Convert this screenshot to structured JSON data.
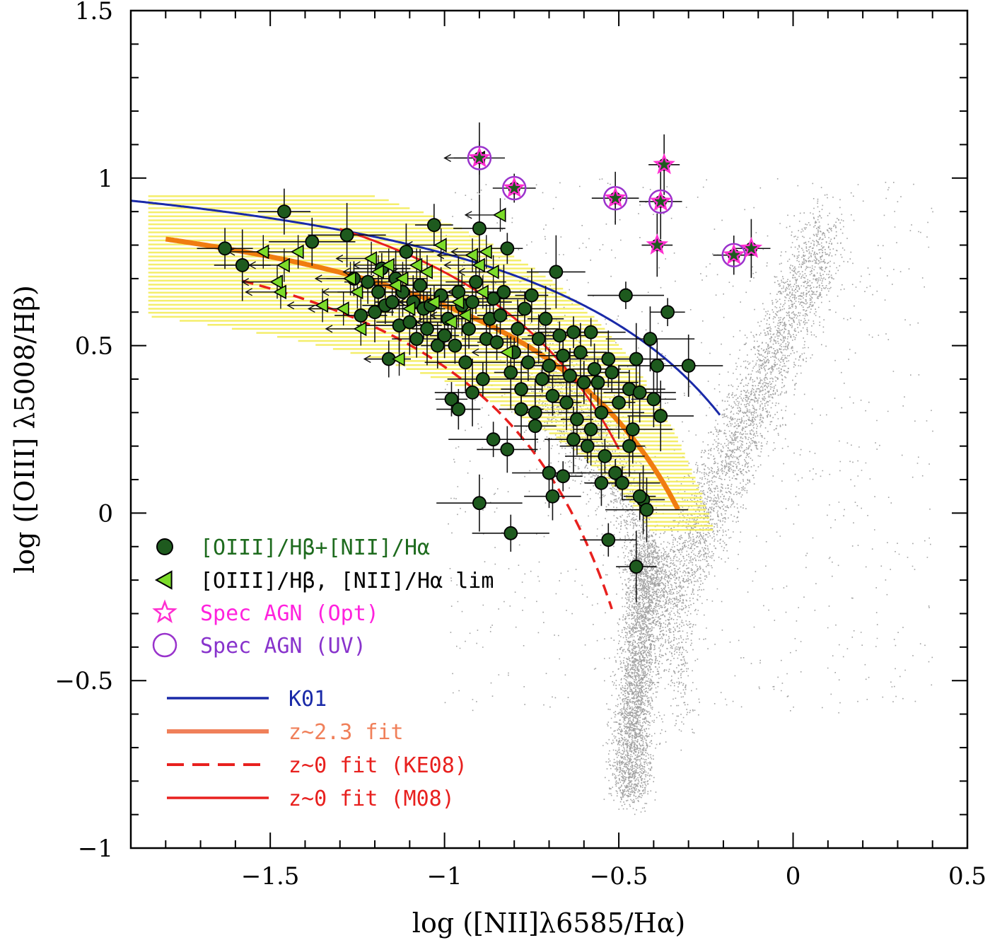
{
  "chart_data": {
    "type": "scatter",
    "xlabel": "log ([NII]λ6585/Hα)",
    "ylabel": "log ([OIII] λ5008/Hβ)",
    "xlim": [
      -1.9,
      0.5
    ],
    "ylim": [
      -1.0,
      1.5
    ],
    "x_ticks": [
      "−1.5",
      "−1",
      "−0.5",
      "0",
      "0.5"
    ],
    "y_ticks": [
      "−1",
      "−0.5",
      "0",
      "0.5",
      "1",
      "1.5"
    ],
    "grid": false,
    "legend_position": "lower-left",
    "colors": {
      "detections": "#1e5a1e",
      "limits": "#7cdc2a",
      "agn_opt": "#ff2ed0",
      "agn_uv": "#9933cc",
      "k01": "#1a2aa8",
      "z23_fit": "#f07d10",
      "z0_fit": "#e8201e",
      "sdss_background": "#8a8a8a",
      "fit_band": "#f3ec52"
    },
    "legend": [
      {
        "marker": "circle",
        "label": "[OIII]/Hβ+[NII]/Hα",
        "color": "#1e6b1e"
      },
      {
        "marker": "triangle-left",
        "label": "[OIII]/Hβ, [NII]/Hα lim",
        "color": "#000000"
      },
      {
        "marker": "star",
        "label": "Spec AGN (Opt)",
        "color": "#ff22dd"
      },
      {
        "marker": "open-circle",
        "label": "Spec AGN (UV)",
        "color": "#8833cc"
      },
      {
        "marker": "line-solid",
        "label": "K01",
        "color": "#1a2aa8"
      },
      {
        "marker": "line-thick",
        "label": "z~2.3 fit",
        "color": "#f0805a"
      },
      {
        "marker": "line-dashed",
        "label": "z~0 fit (KE08)",
        "color": "#e8201e"
      },
      {
        "marker": "line-solid",
        "label": "z~0 fit (M08)",
        "color": "#e8201e"
      }
    ],
    "series": [
      {
        "name": "[OIII]/Hβ+[NII]/Hα",
        "marker": "circle",
        "points": [
          [
            -1.63,
            0.79
          ],
          [
            -1.58,
            0.74
          ],
          [
            -1.46,
            0.9
          ],
          [
            -1.38,
            0.81
          ],
          [
            -1.28,
            0.83
          ],
          [
            -1.26,
            0.7
          ],
          [
            -1.24,
            0.59
          ],
          [
            -1.22,
            0.69
          ],
          [
            -1.2,
            0.6
          ],
          [
            -1.19,
            0.66
          ],
          [
            -1.18,
            0.73
          ],
          [
            -1.17,
            0.62
          ],
          [
            -1.16,
            0.46
          ],
          [
            -1.15,
            0.63
          ],
          [
            -1.14,
            0.7
          ],
          [
            -1.13,
            0.56
          ],
          [
            -1.12,
            0.66
          ],
          [
            -1.11,
            0.78
          ],
          [
            -1.1,
            0.57
          ],
          [
            -1.09,
            0.63
          ],
          [
            -1.08,
            0.52
          ],
          [
            -1.07,
            0.68
          ],
          [
            -1.06,
            0.61
          ],
          [
            -1.05,
            0.55
          ],
          [
            -1.04,
            0.62
          ],
          [
            -1.03,
            0.86
          ],
          [
            -1.02,
            0.5
          ],
          [
            -1.01,
            0.65
          ],
          [
            -1.0,
            0.53
          ],
          [
            -0.99,
            0.58
          ],
          [
            -0.98,
            0.34
          ],
          [
            -0.97,
            0.5
          ],
          [
            -0.96,
            0.66
          ],
          [
            -0.95,
            0.62
          ],
          [
            -0.94,
            0.45
          ],
          [
            -0.93,
            0.55
          ],
          [
            -0.92,
            0.63
          ],
          [
            -0.91,
            0.69
          ],
          [
            -0.9,
            0.85
          ],
          [
            -0.89,
            0.4
          ],
          [
            -0.88,
            0.52
          ],
          [
            -0.87,
            0.58
          ],
          [
            -0.86,
            0.64
          ],
          [
            -0.85,
            0.51
          ],
          [
            -0.84,
            0.59
          ],
          [
            -0.83,
            0.66
          ],
          [
            -0.82,
            0.79
          ],
          [
            -0.81,
            0.42
          ],
          [
            -0.8,
            0.48
          ],
          [
            -0.79,
            0.55
          ],
          [
            -0.78,
            0.37
          ],
          [
            -0.77,
            0.61
          ],
          [
            -0.76,
            0.45
          ],
          [
            -0.75,
            0.65
          ],
          [
            -0.74,
            0.3
          ],
          [
            -0.73,
            0.52
          ],
          [
            -0.72,
            0.4
          ],
          [
            -0.71,
            0.58
          ],
          [
            -0.7,
            0.44
          ],
          [
            -0.69,
            0.35
          ],
          [
            -0.68,
            0.72
          ],
          [
            -0.67,
            0.53
          ],
          [
            -0.66,
            0.47
          ],
          [
            -0.65,
            0.33
          ],
          [
            -0.64,
            0.41
          ],
          [
            -0.63,
            0.54
          ],
          [
            -0.62,
            0.28
          ],
          [
            -0.61,
            0.48
          ],
          [
            -0.6,
            0.39
          ],
          [
            -0.59,
            0.2
          ],
          [
            -0.58,
            0.54
          ],
          [
            -0.57,
            0.43
          ],
          [
            -0.56,
            0.39
          ],
          [
            -0.55,
            0.3
          ],
          [
            -0.54,
            0.17
          ],
          [
            -0.53,
            0.46
          ],
          [
            -0.52,
            0.42
          ],
          [
            -0.51,
            0.12
          ],
          [
            -0.5,
            0.33
          ],
          [
            -0.49,
            0.09
          ],
          [
            -0.48,
            0.65
          ],
          [
            -0.47,
            0.37
          ],
          [
            -0.46,
            0.25
          ],
          [
            -0.45,
            0.46
          ],
          [
            -0.44,
            0.36
          ],
          [
            -0.43,
            0.04
          ],
          [
            -0.42,
            0.01
          ],
          [
            -0.41,
            0.52
          ],
          [
            -0.4,
            0.34
          ],
          [
            -0.39,
            0.44
          ],
          [
            -0.38,
            0.29
          ],
          [
            -0.36,
            0.6
          ],
          [
            -0.3,
            0.44
          ],
          [
            -0.9,
            0.03
          ],
          [
            -0.86,
            0.22
          ],
          [
            -0.82,
            0.19
          ],
          [
            -0.78,
            0.31
          ],
          [
            -0.74,
            0.26
          ],
          [
            -0.7,
            0.12
          ],
          [
            -0.69,
            0.05
          ],
          [
            -0.66,
            0.11
          ],
          [
            -0.63,
            0.22
          ],
          [
            -0.58,
            0.25
          ],
          [
            -0.81,
            -0.06
          ],
          [
            -0.53,
            -0.08
          ],
          [
            -0.45,
            -0.16
          ],
          [
            -0.96,
            0.31
          ],
          [
            -0.92,
            0.36
          ],
          [
            -0.55,
            0.09
          ],
          [
            -0.47,
            0.2
          ],
          [
            -0.44,
            0.05
          ]
        ]
      },
      {
        "name": "[OIII]/Hβ, [NII]/Hα lim",
        "marker": "triangle-left",
        "points": [
          [
            -1.52,
            0.78
          ],
          [
            -1.48,
            0.69
          ],
          [
            -1.47,
            0.66
          ],
          [
            -1.46,
            0.74
          ],
          [
            -1.42,
            0.78
          ],
          [
            -1.35,
            0.62
          ],
          [
            -1.29,
            0.61
          ],
          [
            -1.27,
            0.7
          ],
          [
            -1.25,
            0.66
          ],
          [
            -1.24,
            0.55
          ],
          [
            -1.21,
            0.76
          ],
          [
            -1.19,
            0.72
          ],
          [
            -1.16,
            0.74
          ],
          [
            -1.14,
            0.68
          ],
          [
            -1.12,
            0.7
          ],
          [
            -1.1,
            0.61
          ],
          [
            -1.08,
            0.74
          ],
          [
            -1.05,
            0.72
          ],
          [
            -1.03,
            0.63
          ],
          [
            -1.01,
            0.8
          ],
          [
            -0.98,
            0.57
          ],
          [
            -0.96,
            0.63
          ],
          [
            -0.94,
            0.59
          ],
          [
            -0.92,
            0.77
          ],
          [
            -0.9,
            0.74
          ],
          [
            -0.89,
            0.66
          ],
          [
            -0.88,
            0.78
          ],
          [
            -0.86,
            0.72
          ],
          [
            -0.84,
            0.89
          ],
          [
            -0.82,
            0.48
          ],
          [
            -1.13,
            0.46
          ],
          [
            -0.9,
            1.06
          ]
        ]
      },
      {
        "name": "Spec AGN (Opt)",
        "marker": "star",
        "points": [
          [
            -0.9,
            1.06
          ],
          [
            -0.8,
            0.97
          ],
          [
            -0.51,
            0.94
          ],
          [
            -0.38,
            0.93
          ],
          [
            -0.37,
            1.04
          ],
          [
            -0.39,
            0.8
          ],
          [
            -0.17,
            0.77
          ],
          [
            -0.12,
            0.79
          ]
        ]
      },
      {
        "name": "Spec AGN (UV)",
        "marker": "open-circle",
        "points": [
          [
            -0.9,
            1.06
          ],
          [
            -0.8,
            0.97
          ],
          [
            -0.51,
            0.94
          ],
          [
            -0.38,
            0.93
          ],
          [
            -0.17,
            0.77
          ]
        ]
      }
    ],
    "curves": [
      {
        "name": "K01",
        "style": "solid",
        "formula": "0.61/(x-0.47)+1.19",
        "x_range": [
          -1.9,
          -0.21
        ]
      },
      {
        "name": "z~2.3 fit",
        "style": "thick",
        "formula": "0.61/(x-0.22)+1.12",
        "x_range": [
          -1.8,
          -0.33
        ]
      },
      {
        "name": "z~0 fit (KE08)",
        "style": "dashed",
        "formula": "0.61/(x+0.08)+1.10",
        "x_range": [
          -1.58,
          -0.52
        ]
      },
      {
        "name": "z~0 fit (M08)",
        "style": "solid",
        "formula": "0.61/(x-0.05)+1.30",
        "x_range": [
          -1.3,
          -0.5
        ]
      }
    ]
  }
}
